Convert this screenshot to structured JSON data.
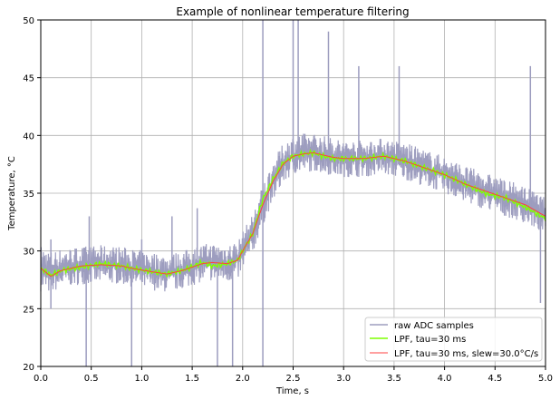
{
  "chart_data": {
    "type": "line",
    "title": "Example of nonlinear temperature filtering",
    "xlabel": "Time, s",
    "ylabel": "Temperature, °C",
    "xlim": [
      0,
      5
    ],
    "ylim": [
      20,
      50
    ],
    "xticks": [
      "0.0",
      "0.5",
      "1.0",
      "1.5",
      "2.0",
      "2.5",
      "3.0",
      "3.5",
      "4.0",
      "4.5",
      "5.0"
    ],
    "yticks": [
      "20",
      "25",
      "30",
      "35",
      "40",
      "45",
      "50"
    ],
    "grid": true,
    "legend_position": "lower-right",
    "x": [
      0,
      0.1,
      0.2,
      0.4,
      0.6,
      0.8,
      0.9,
      1.1,
      1.25,
      1.4,
      1.6,
      1.7,
      1.85,
      1.95,
      2.0,
      2.1,
      2.2,
      2.3,
      2.4,
      2.5,
      2.6,
      2.7,
      2.8,
      2.9,
      3.0,
      3.2,
      3.4,
      3.5,
      3.6,
      3.8,
      4.0,
      4.2,
      4.4,
      4.6,
      4.8,
      5.0
    ],
    "series": [
      {
        "name": "raw ADC samples",
        "color": "#9d9dbf",
        "lower": [
          26.5,
          26.3,
          26.8,
          27.1,
          27.2,
          27.1,
          26.9,
          26.6,
          26.4,
          26.7,
          27.3,
          27.4,
          27.3,
          27.5,
          28.2,
          29.8,
          32.2,
          34.3,
          35.8,
          36.6,
          36.8,
          36.9,
          36.7,
          36.5,
          36.4,
          36.4,
          36.6,
          36.4,
          36.2,
          35.6,
          35.0,
          34.2,
          33.6,
          33.0,
          32.4,
          31.4
        ],
        "upper": [
          30.5,
          30.0,
          30.2,
          30.4,
          30.5,
          30.4,
          30.2,
          29.9,
          29.7,
          30.0,
          30.6,
          30.7,
          30.6,
          30.9,
          31.7,
          33.2,
          35.8,
          37.8,
          39.3,
          40.0,
          40.2,
          40.2,
          40.0,
          39.8,
          39.6,
          39.6,
          39.8,
          39.6,
          39.4,
          38.8,
          38.2,
          37.4,
          36.8,
          36.2,
          35.6,
          34.6
        ],
        "spikes": [
          [
            0.1,
            25
          ],
          [
            0.1,
            31
          ],
          [
            0.45,
            20
          ],
          [
            0.48,
            33
          ],
          [
            0.9,
            20
          ],
          [
            1.0,
            31
          ],
          [
            1.3,
            33
          ],
          [
            1.55,
            33.7
          ],
          [
            1.75,
            20
          ],
          [
            1.9,
            20
          ],
          [
            2.2,
            50
          ],
          [
            2.2,
            20
          ],
          [
            2.5,
            50
          ],
          [
            2.55,
            50
          ],
          [
            2.85,
            49
          ],
          [
            3.15,
            46
          ],
          [
            3.55,
            46
          ],
          [
            4.85,
            46
          ],
          [
            4.95,
            25.5
          ]
        ]
      },
      {
        "name": "LPF, tau=30 ms",
        "color": "#7fff00",
        "values": [
          28.5,
          27.9,
          28.3,
          28.6,
          28.9,
          28.7,
          28.5,
          28.2,
          28.0,
          28.3,
          29.0,
          28.7,
          28.9,
          29.2,
          30.0,
          31.5,
          34.5,
          36.2,
          37.6,
          38.2,
          38.4,
          38.5,
          38.2,
          38.0,
          38.0,
          38.0,
          38.2,
          38.0,
          37.8,
          37.2,
          36.6,
          35.8,
          35.0,
          34.6,
          33.8,
          32.8
        ]
      },
      {
        "name": "LPF, tau=30 ms, slew=30.0°C/s",
        "color": "#ff4040",
        "values": [
          28.5,
          27.8,
          28.3,
          28.7,
          28.8,
          28.7,
          28.5,
          28.2,
          28.0,
          28.3,
          28.9,
          29.0,
          28.9,
          29.2,
          30.0,
          31.5,
          34.0,
          36.0,
          37.5,
          38.2,
          38.4,
          38.5,
          38.3,
          38.1,
          38.0,
          38.0,
          38.2,
          38.0,
          37.8,
          37.2,
          36.6,
          35.8,
          35.2,
          34.6,
          34.0,
          33.0
        ]
      }
    ]
  }
}
